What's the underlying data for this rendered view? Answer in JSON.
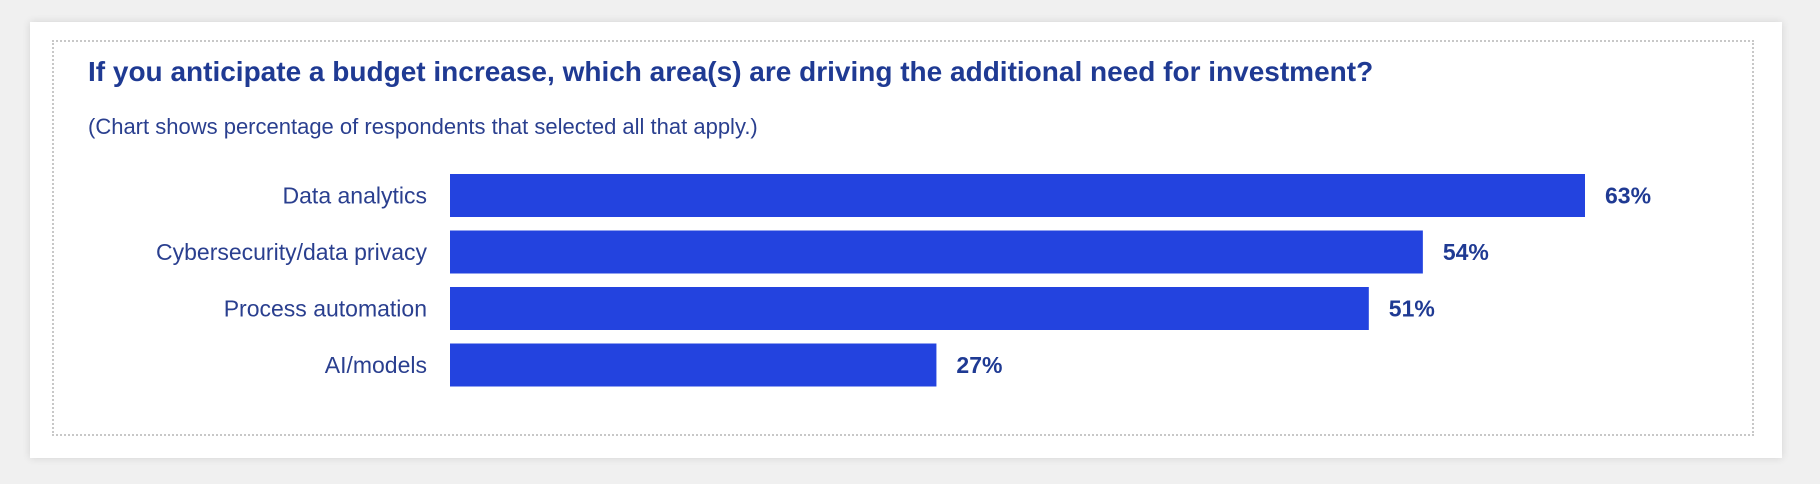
{
  "chart_data": {
    "type": "bar",
    "orientation": "horizontal",
    "title": "If you anticipate a budget increase, which area(s) are driving the additional need for investment?",
    "subtitle": "(Chart shows percentage of respondents that selected all that apply.)",
    "categories": [
      "Data analytics",
      "Cybersecurity/data privacy",
      "Process automation",
      "AI/models"
    ],
    "values": [
      63,
      54,
      51,
      27
    ],
    "value_labels": [
      "63%",
      "54%",
      "51%",
      "27%"
    ],
    "xlim": [
      0,
      63
    ],
    "grid": false,
    "legend": "none",
    "bar_color": "#2343df"
  }
}
